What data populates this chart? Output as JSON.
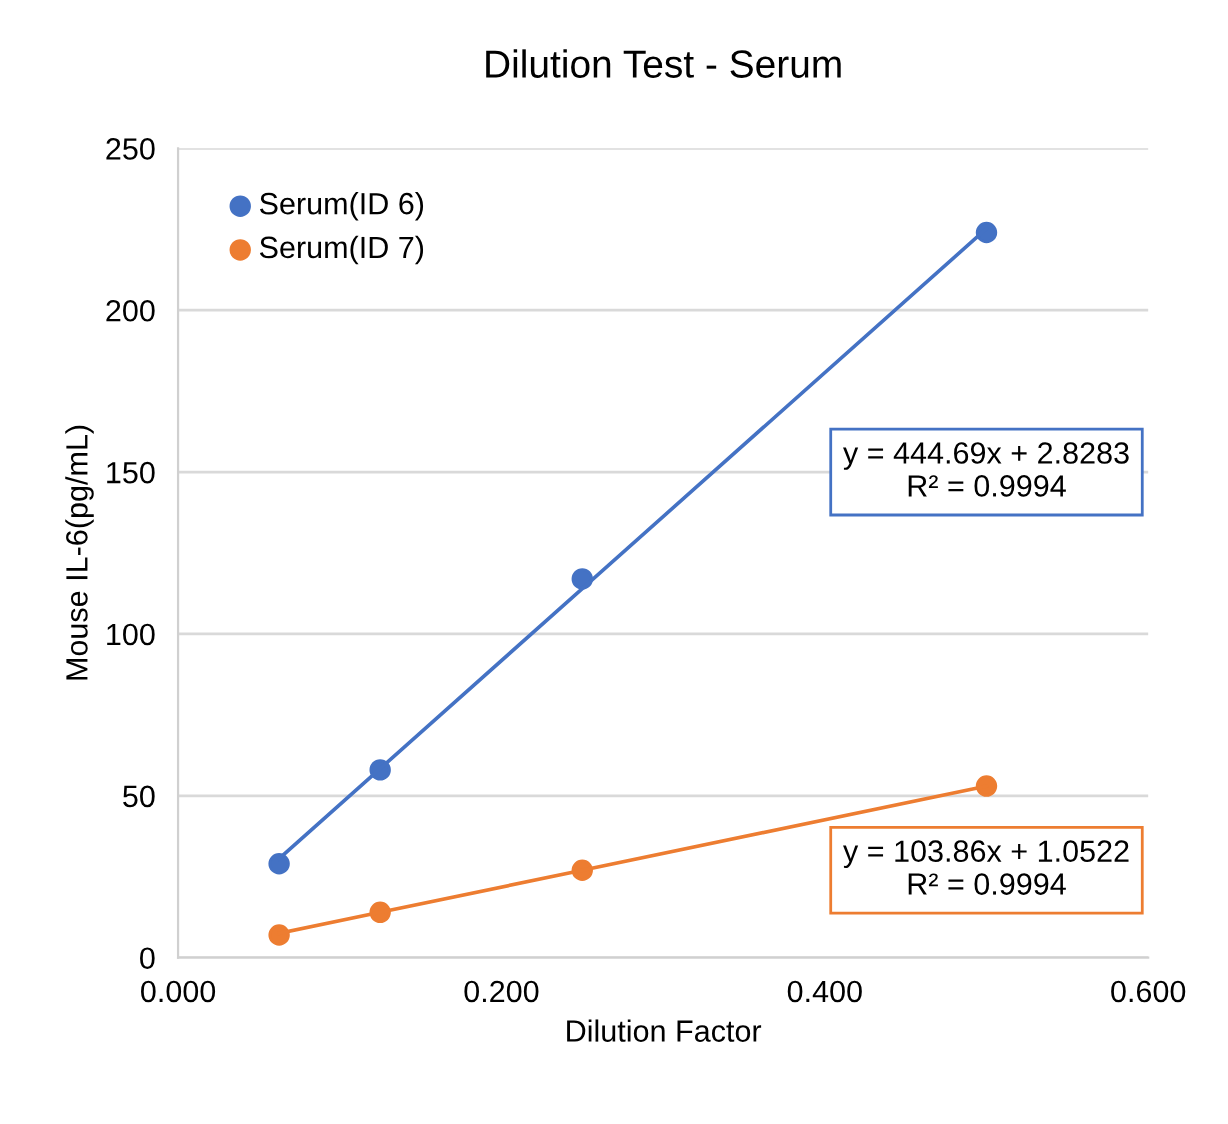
{
  "chart_data": {
    "type": "scatter",
    "title": "Dilution Test - Serum",
    "xlabel": "Dilution Factor",
    "ylabel": "Mouse IL-6(pg/mL)",
    "xlim": [
      0,
      0.6
    ],
    "xticks": [
      {
        "value": 0,
        "label": "0.000"
      },
      {
        "value": 0.2,
        "label": "0.200"
      },
      {
        "value": 0.4,
        "label": "0.400"
      },
      {
        "value": 0.6,
        "label": "0.600"
      }
    ],
    "ylim": [
      0,
      250
    ],
    "yticks": [
      0,
      50,
      100,
      150,
      200,
      250
    ],
    "grid": "y",
    "legend": "top left",
    "x": [
      0.0625,
      0.125,
      0.25,
      0.5
    ],
    "series": [
      {
        "name": "Serum(ID 6)",
        "color": "#4472c4",
        "marker": "circle",
        "values": [
          29,
          58,
          117,
          224
        ]
      },
      {
        "name": "Serum(ID 7)",
        "color": "#ed7d31",
        "marker": "circle",
        "values": [
          7,
          14,
          27,
          53
        ]
      },
      {
        "type": "line",
        "color": "#4472c4",
        "values": [
          30.6,
          58.4,
          114.0,
          225.2
        ]
      },
      {
        "type": "line",
        "color": "#ed7d31",
        "values": [
          7.5,
          14.0,
          27.0,
          53.0
        ]
      }
    ],
    "annotations": [
      "y = 444.69x + 2.8283\nR² = 0.9994",
      "y = 103.86x + 1.0522\nR² = 0.9994"
    ]
  }
}
